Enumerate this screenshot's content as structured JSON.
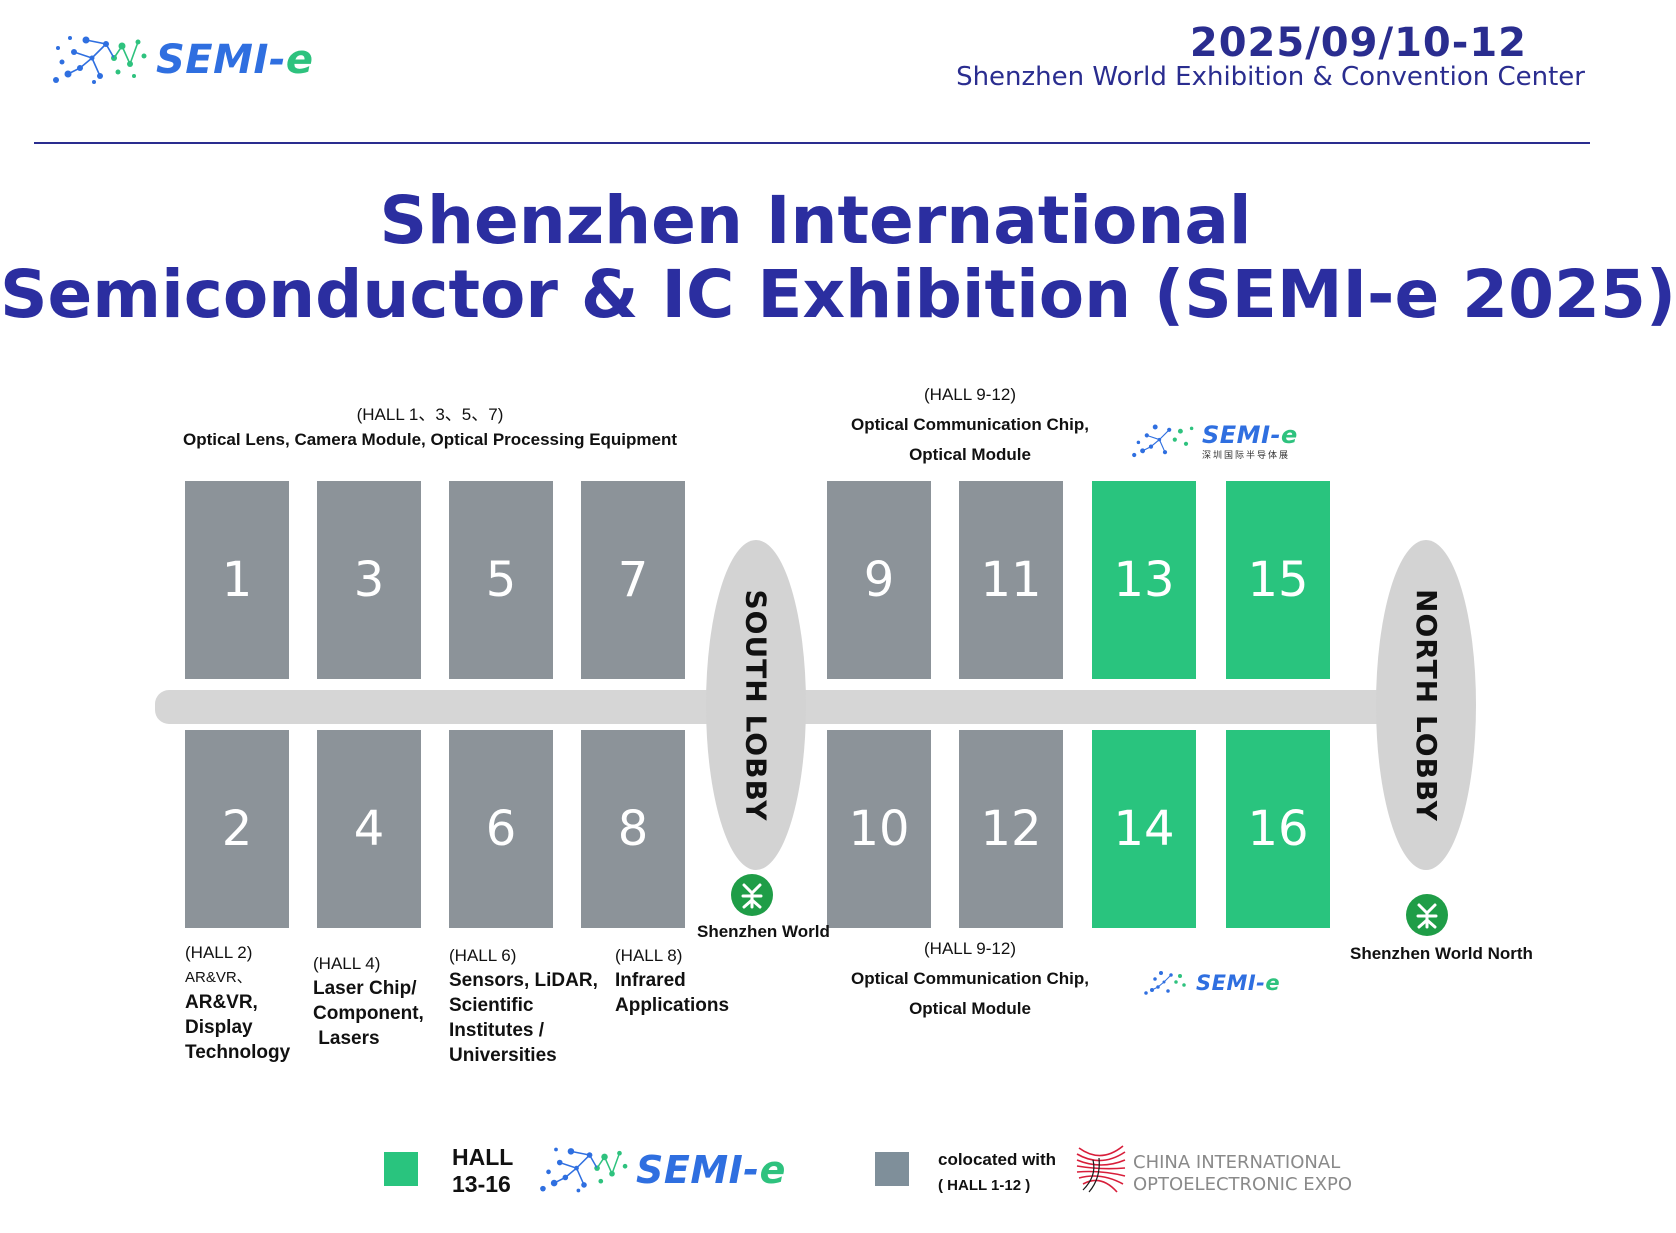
{
  "header": {
    "logo_text_a": "SEMI-",
    "logo_text_b": "e",
    "date": "2025/09/10-12",
    "venue": "Shenzhen World Exhibition & Convention Center"
  },
  "title": {
    "line1": "Shenzhen International",
    "line2": "Semiconductor & IC Exhibition (SEMI-e 2025)"
  },
  "colors": {
    "navy": "#2a2d8f",
    "hall_gray": "#8c9399",
    "hall_green": "#29c47e",
    "corridor": "#d6d6d6",
    "metro_green": "#1f9d47"
  },
  "halls_top": [
    {
      "number": "1",
      "color": "gray"
    },
    {
      "number": "3",
      "color": "gray"
    },
    {
      "number": "5",
      "color": "gray"
    },
    {
      "number": "7",
      "color": "gray"
    },
    {
      "number": "9",
      "color": "gray"
    },
    {
      "number": "11",
      "color": "gray"
    },
    {
      "number": "13",
      "color": "green"
    },
    {
      "number": "15",
      "color": "green"
    }
  ],
  "halls_bottom": [
    {
      "number": "2",
      "color": "gray"
    },
    {
      "number": "4",
      "color": "gray"
    },
    {
      "number": "6",
      "color": "gray"
    },
    {
      "number": "8",
      "color": "gray"
    },
    {
      "number": "10",
      "color": "gray"
    },
    {
      "number": "12",
      "color": "gray"
    },
    {
      "number": "14",
      "color": "green"
    },
    {
      "number": "16",
      "color": "green"
    }
  ],
  "lobbies": {
    "south": "SOUTH LOBBY",
    "north": "NORTH LOBBY"
  },
  "stations": {
    "south": "Shenzhen World",
    "north": "Shenzhen World North"
  },
  "labels": {
    "top_left_halls": "(HALL 1、3、5、7)",
    "top_left_desc": "Optical Lens, Camera Module, Optical Processing Equipment",
    "top_mid_halls": "(HALL 9-12)",
    "top_mid_desc1": "Optical Communication Chip,",
    "top_mid_desc2": "Optical Module",
    "hall2_halls": "(HALL 2)",
    "hall2_sub": "AR&VR、",
    "hall2_desc": [
      "AR&VR,",
      "Display",
      "Technology"
    ],
    "hall4_halls": "(HALL 4)",
    "hall4_desc": [
      "Laser Chip/",
      "Component,",
      " Lasers"
    ],
    "hall6_halls": "(HALL 6)",
    "hall6_desc": [
      "Sensors, LiDAR,",
      "Scientific",
      "Institutes /",
      "Universities"
    ],
    "hall8_halls": "(HALL 8)",
    "hall8_desc": [
      "Infrared",
      "Applications"
    ],
    "bottom_mid_halls": "(HALL 9-12)",
    "bottom_mid_desc1": "Optical Communication Chip,",
    "bottom_mid_desc2": "Optical Module",
    "small_logo_cn": "深圳国际半导体展"
  },
  "legend": {
    "green_label1": "HALL",
    "green_label2": "13-16",
    "gray_label1": "colocated with",
    "gray_label2": "( HALL 1-12 )",
    "ccoe_line1": "CHINA INTERNATIONAL",
    "ccoe_line2": "OPTOELECTRONIC EXPO"
  },
  "icons": {
    "logo": "semi-e-dots-logo-icon",
    "metro": "shenzhen-metro-icon",
    "ccoe": "ccoe-fan-logo-icon"
  }
}
